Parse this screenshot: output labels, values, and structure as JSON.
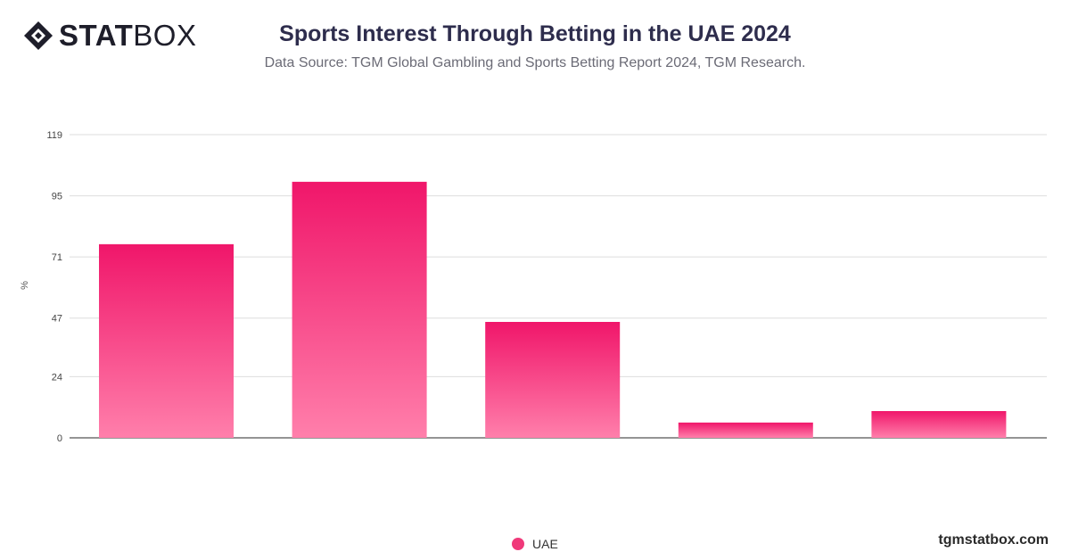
{
  "header": {
    "logo_bold": "STAT",
    "logo_light": "BOX",
    "title": "Sports Interest Through Betting in the UAE 2024",
    "subtitle": "Data Source: TGM Global Gambling and Sports Betting Report 2024, TGM Research."
  },
  "footer": {
    "site": "tgmstatbox.com"
  },
  "colors": {
    "bar_top": "#f0166a",
    "bar_bottom": "#ff7fab",
    "legend": "#f0397a",
    "grid": "#dddddd"
  },
  "chart_data": {
    "type": "bar",
    "title": "Sports Interest Through Betting in the UAE 2024",
    "ylabel": "%",
    "categories": [
      "",
      "",
      "",
      "",
      ""
    ],
    "yticks": [
      0,
      24,
      47,
      71,
      95,
      119
    ],
    "ylim": [
      0,
      119
    ],
    "grid": true,
    "legend_position": "bottom",
    "series": [
      {
        "name": "UAE",
        "values": [
          76,
          100.5,
          45.5,
          6,
          10.5
        ]
      }
    ]
  }
}
